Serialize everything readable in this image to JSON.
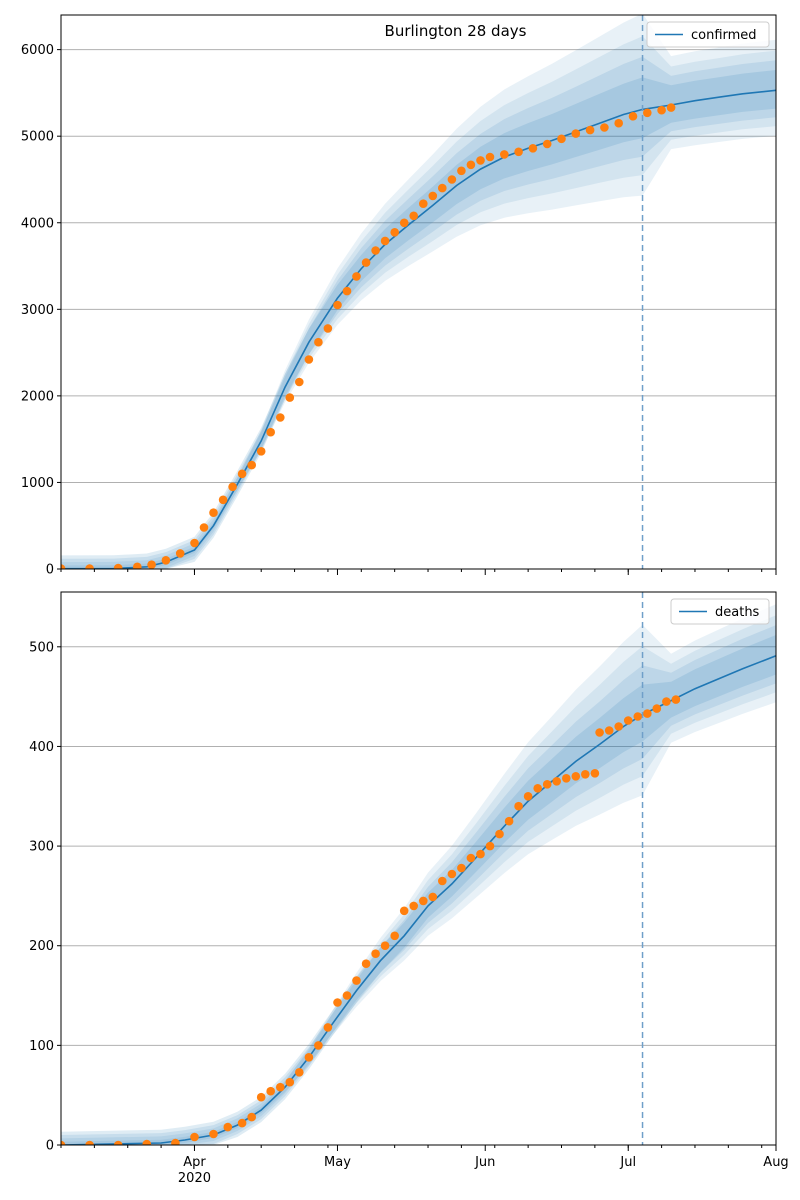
{
  "chart_data": [
    {
      "type": "line",
      "title": "Burlington 28 days",
      "xlabel": "",
      "ylabel": "",
      "ylim": [
        0,
        6400
      ],
      "x_range": [
        "2020-03-04",
        "2020-08-01"
      ],
      "yticks": [
        0,
        1000,
        2000,
        3000,
        4000,
        5000,
        6000
      ],
      "grid": "horizontal",
      "legend_position": "top-right",
      "forecast_start": "2020-07-04",
      "series": [
        {
          "name": "confirmed",
          "kind": "line",
          "color": "#1f77b4",
          "points": [
            [
              "2020-03-04",
              3
            ],
            [
              "2020-03-15",
              5
            ],
            [
              "2020-03-22",
              25
            ],
            [
              "2020-03-26",
              80
            ],
            [
              "2020-04-01",
              220
            ],
            [
              "2020-04-05",
              500
            ],
            [
              "2020-04-10",
              980
            ],
            [
              "2020-04-15",
              1480
            ],
            [
              "2020-04-20",
              2100
            ],
            [
              "2020-04-25",
              2620
            ],
            [
              "2020-05-01",
              3130
            ],
            [
              "2020-05-06",
              3470
            ],
            [
              "2020-05-11",
              3750
            ],
            [
              "2020-05-16",
              3980
            ],
            [
              "2020-05-21",
              4200
            ],
            [
              "2020-05-26",
              4430
            ],
            [
              "2020-05-31",
              4620
            ],
            [
              "2020-06-05",
              4760
            ],
            [
              "2020-06-10",
              4860
            ],
            [
              "2020-06-15",
              4950
            ],
            [
              "2020-06-20",
              5050
            ],
            [
              "2020-06-25",
              5150
            ],
            [
              "2020-06-30",
              5250
            ],
            [
              "2020-07-04",
              5310
            ],
            [
              "2020-07-10",
              5360
            ],
            [
              "2020-07-15",
              5410
            ],
            [
              "2020-07-20",
              5450
            ],
            [
              "2020-07-25",
              5490
            ],
            [
              "2020-08-01",
              5530
            ]
          ]
        },
        {
          "name": "",
          "kind": "scatter",
          "color": "#ff7f0e",
          "points": [
            [
              "2020-03-04",
              5
            ],
            [
              "2020-03-10",
              6
            ],
            [
              "2020-03-16",
              10
            ],
            [
              "2020-03-20",
              25
            ],
            [
              "2020-03-23",
              50
            ],
            [
              "2020-03-26",
              100
            ],
            [
              "2020-03-29",
              180
            ],
            [
              "2020-04-01",
              300
            ],
            [
              "2020-04-03",
              480
            ],
            [
              "2020-04-05",
              650
            ],
            [
              "2020-04-07",
              800
            ],
            [
              "2020-04-09",
              950
            ],
            [
              "2020-04-11",
              1100
            ],
            [
              "2020-04-13",
              1200
            ],
            [
              "2020-04-15",
              1360
            ],
            [
              "2020-04-17",
              1580
            ],
            [
              "2020-04-19",
              1750
            ],
            [
              "2020-04-21",
              1980
            ],
            [
              "2020-04-23",
              2160
            ],
            [
              "2020-04-25",
              2420
            ],
            [
              "2020-04-27",
              2620
            ],
            [
              "2020-04-29",
              2780
            ],
            [
              "2020-05-01",
              3050
            ],
            [
              "2020-05-03",
              3210
            ],
            [
              "2020-05-05",
              3380
            ],
            [
              "2020-05-07",
              3540
            ],
            [
              "2020-05-09",
              3680
            ],
            [
              "2020-05-11",
              3790
            ],
            [
              "2020-05-13",
              3890
            ],
            [
              "2020-05-15",
              4000
            ],
            [
              "2020-05-17",
              4080
            ],
            [
              "2020-05-19",
              4220
            ],
            [
              "2020-05-21",
              4310
            ],
            [
              "2020-05-23",
              4400
            ],
            [
              "2020-05-25",
              4500
            ],
            [
              "2020-05-27",
              4600
            ],
            [
              "2020-05-29",
              4670
            ],
            [
              "2020-05-31",
              4720
            ],
            [
              "2020-06-02",
              4760
            ],
            [
              "2020-06-05",
              4790
            ],
            [
              "2020-06-08",
              4820
            ],
            [
              "2020-06-11",
              4860
            ],
            [
              "2020-06-14",
              4910
            ],
            [
              "2020-06-17",
              4970
            ],
            [
              "2020-06-20",
              5030
            ],
            [
              "2020-06-23",
              5070
            ],
            [
              "2020-06-26",
              5100
            ],
            [
              "2020-06-29",
              5150
            ],
            [
              "2020-07-02",
              5230
            ],
            [
              "2020-07-05",
              5270
            ],
            [
              "2020-07-08",
              5300
            ],
            [
              "2020-07-10",
              5330
            ]
          ]
        }
      ]
    },
    {
      "type": "line",
      "title": "",
      "xlabel": "",
      "ylabel": "",
      "ylim": [
        0,
        555
      ],
      "x_range": [
        "2020-03-04",
        "2020-08-01"
      ],
      "yticks": [
        0,
        100,
        200,
        300,
        400,
        500
      ],
      "xticks": [
        {
          "date": "2020-04-01",
          "label": "Apr",
          "sublabel": "2020"
        },
        {
          "date": "2020-05-01",
          "label": "May",
          "sublabel": ""
        },
        {
          "date": "2020-06-01",
          "label": "Jun",
          "sublabel": ""
        },
        {
          "date": "2020-07-01",
          "label": "Jul",
          "sublabel": ""
        },
        {
          "date": "2020-08-01",
          "label": "Aug",
          "sublabel": ""
        }
      ],
      "grid": "horizontal",
      "legend_position": "top-right",
      "forecast_start": "2020-07-04",
      "series": [
        {
          "name": "deaths",
          "kind": "line",
          "color": "#1f77b4",
          "points": [
            [
              "2020-03-04",
              0
            ],
            [
              "2020-03-25",
              2
            ],
            [
              "2020-03-30",
              5
            ],
            [
              "2020-04-05",
              10
            ],
            [
              "2020-04-10",
              20
            ],
            [
              "2020-04-15",
              35
            ],
            [
              "2020-04-20",
              58
            ],
            [
              "2020-04-25",
              88
            ],
            [
              "2020-04-30",
              122
            ],
            [
              "2020-05-05",
              155
            ],
            [
              "2020-05-10",
              185
            ],
            [
              "2020-05-15",
              210
            ],
            [
              "2020-05-20",
              240
            ],
            [
              "2020-05-25",
              262
            ],
            [
              "2020-05-30",
              288
            ],
            [
              "2020-06-05",
              320
            ],
            [
              "2020-06-10",
              345
            ],
            [
              "2020-06-15",
              365
            ],
            [
              "2020-06-20",
              385
            ],
            [
              "2020-06-25",
              402
            ],
            [
              "2020-06-30",
              420
            ],
            [
              "2020-07-04",
              432
            ],
            [
              "2020-07-10",
              446
            ],
            [
              "2020-07-15",
              458
            ],
            [
              "2020-07-20",
              468
            ],
            [
              "2020-07-25",
              478
            ],
            [
              "2020-08-01",
              491
            ]
          ]
        },
        {
          "name": "",
          "kind": "scatter",
          "color": "#ff7f0e",
          "points": [
            [
              "2020-03-04",
              0
            ],
            [
              "2020-03-10",
              0
            ],
            [
              "2020-03-16",
              0
            ],
            [
              "2020-03-22",
              1
            ],
            [
              "2020-03-28",
              2
            ],
            [
              "2020-04-01",
              8
            ],
            [
              "2020-04-05",
              11
            ],
            [
              "2020-04-08",
              18
            ],
            [
              "2020-04-11",
              22
            ],
            [
              "2020-04-13",
              28
            ],
            [
              "2020-04-15",
              48
            ],
            [
              "2020-04-17",
              54
            ],
            [
              "2020-04-19",
              58
            ],
            [
              "2020-04-21",
              63
            ],
            [
              "2020-04-23",
              73
            ],
            [
              "2020-04-25",
              88
            ],
            [
              "2020-04-27",
              100
            ],
            [
              "2020-04-29",
              118
            ],
            [
              "2020-05-01",
              143
            ],
            [
              "2020-05-03",
              150
            ],
            [
              "2020-05-05",
              165
            ],
            [
              "2020-05-07",
              182
            ],
            [
              "2020-05-09",
              192
            ],
            [
              "2020-05-11",
              200
            ],
            [
              "2020-05-13",
              210
            ],
            [
              "2020-05-15",
              235
            ],
            [
              "2020-05-17",
              240
            ],
            [
              "2020-05-19",
              245
            ],
            [
              "2020-05-21",
              249
            ],
            [
              "2020-05-23",
              265
            ],
            [
              "2020-05-25",
              272
            ],
            [
              "2020-05-27",
              278
            ],
            [
              "2020-05-29",
              288
            ],
            [
              "2020-05-31",
              292
            ],
            [
              "2020-06-02",
              300
            ],
            [
              "2020-06-04",
              312
            ],
            [
              "2020-06-06",
              325
            ],
            [
              "2020-06-08",
              340
            ],
            [
              "2020-06-10",
              350
            ],
            [
              "2020-06-12",
              358
            ],
            [
              "2020-06-14",
              362
            ],
            [
              "2020-06-16",
              365
            ],
            [
              "2020-06-18",
              368
            ],
            [
              "2020-06-20",
              370
            ],
            [
              "2020-06-22",
              372
            ],
            [
              "2020-06-24",
              373
            ],
            [
              "2020-06-25",
              414
            ],
            [
              "2020-06-27",
              416
            ],
            [
              "2020-06-29",
              420
            ],
            [
              "2020-07-01",
              426
            ],
            [
              "2020-07-03",
              430
            ],
            [
              "2020-07-05",
              433
            ],
            [
              "2020-07-07",
              438
            ],
            [
              "2020-07-09",
              445
            ],
            [
              "2020-07-11",
              447
            ]
          ]
        }
      ]
    }
  ]
}
